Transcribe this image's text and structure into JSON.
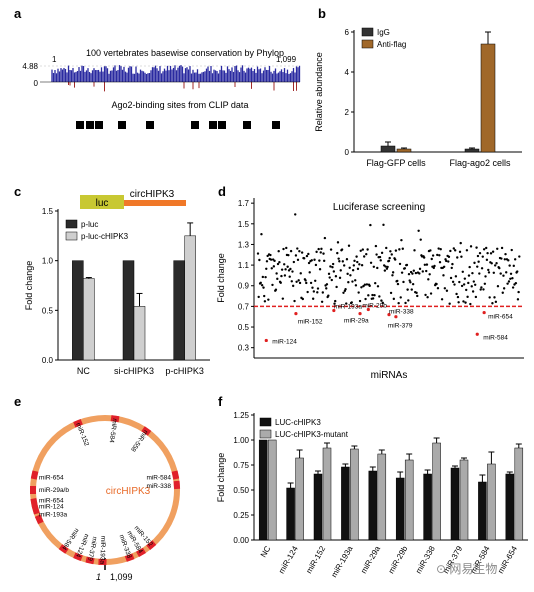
{
  "panels": {
    "a": {
      "letter": "a",
      "track_title": "100 vertebrates basewise conservation by Phylop",
      "y_top": "4.88",
      "y_zero": "0",
      "x_start": "1",
      "x_end": "1,099",
      "clip_title": "Ago2-binding sites from CLIP data"
    },
    "b": {
      "letter": "b"
    },
    "c": {
      "letter": "c",
      "construct_luc": "luc",
      "construct_circ": "circHIPK3"
    },
    "d": {
      "letter": "d"
    },
    "e": {
      "letter": "e",
      "center_label": "circHIPK3",
      "pos_start": "1",
      "pos_end": "1,099",
      "site_labels": [
        "miR-152",
        "miR-584",
        "miR-558",
        "miR-654",
        "miR-29a/b",
        "miR-654",
        "miR-124",
        "miR-193a",
        "miR-584",
        "miR-338",
        "miR-584",
        "miR-124",
        "miR-379",
        "miR-193a",
        "miR-152",
        "miR-584",
        "miR-338"
      ]
    },
    "f": {
      "letter": "f"
    }
  },
  "watermark": "⊙ 网易生物",
  "chart_data": [
    {
      "panel": "b",
      "type": "bar",
      "categories": [
        "Flag-GFP cells",
        "Flag-ago2 cells"
      ],
      "series": [
        {
          "name": "IgG",
          "values": [
            0.3,
            0.15
          ],
          "errors": [
            0.2,
            0.05
          ],
          "color": "#333333"
        },
        {
          "name": "Anti-flag",
          "values": [
            0.15,
            5.4
          ],
          "errors": [
            0.05,
            0.6
          ],
          "color": "#a0682a"
        }
      ],
      "ylabel": "Relative abundance",
      "ylim": [
        0,
        6
      ],
      "yticks": [
        0,
        2,
        4,
        6
      ],
      "legend": "top-left"
    },
    {
      "panel": "c",
      "type": "bar",
      "categories": [
        "NC",
        "si-cHIPK3",
        "p-cHIPK3"
      ],
      "series": [
        {
          "name": "p-luc",
          "values": [
            1.0,
            1.0,
            1.0
          ],
          "errors": [
            0,
            0,
            0
          ],
          "color": "#2b2b2b"
        },
        {
          "name": "p-luc-cHIPK3",
          "values": [
            0.82,
            0.54,
            1.25
          ],
          "errors": [
            0.01,
            0.13,
            0.13
          ],
          "color": "#cfcfcf"
        }
      ],
      "ylabel": "Fold change",
      "ylim": [
        0,
        1.5
      ],
      "yticks": [
        "0.0",
        "0.5",
        "1.0",
        "1.5"
      ],
      "legend": "top-left"
    },
    {
      "panel": "d",
      "type": "scatter",
      "title": "Luciferase screening",
      "xlabel": "miRNAs",
      "ylabel": "Fold change",
      "ylim": [
        0.2,
        1.75
      ],
      "yticks": [
        "0.3",
        "0.5",
        "0.7",
        "0.9",
        "1.1",
        "1.3",
        "1.5",
        "1.7"
      ],
      "threshold": 0.7,
      "n_points": 380,
      "highlighted": [
        {
          "label": "miR-124",
          "x": 12,
          "y": 0.37
        },
        {
          "label": "miR-152",
          "x": 55,
          "y": 0.63
        },
        {
          "label": "miR-193a",
          "x": 110,
          "y": 0.66
        },
        {
          "label": "miR-29b",
          "x": 160,
          "y": 0.67
        },
        {
          "label": "miR-29a",
          "x": 148,
          "y": 0.63
        },
        {
          "label": "miR-338",
          "x": 190,
          "y": 0.62
        },
        {
          "label": "miR-379",
          "x": 200,
          "y": 0.6
        },
        {
          "label": "miR-654",
          "x": 328,
          "y": 0.64
        },
        {
          "label": "miR-584",
          "x": 318,
          "y": 0.43
        }
      ]
    },
    {
      "panel": "f",
      "type": "bar",
      "categories": [
        "NC",
        "miR-124",
        "miR-152",
        "miR-193a",
        "miR-29a",
        "miR-29b",
        "miR-338",
        "miR-379",
        "miR-584",
        "miR-654"
      ],
      "series": [
        {
          "name": "LUC-cHIPK3",
          "values": [
            1.0,
            0.52,
            0.66,
            0.73,
            0.69,
            0.62,
            0.66,
            0.72,
            0.58,
            0.66
          ],
          "errors": [
            0,
            0.05,
            0.03,
            0.03,
            0.04,
            0.06,
            0.04,
            0.02,
            0.07,
            0.02
          ],
          "color": "#111111"
        },
        {
          "name": "LUC-cHIPK3-mutant",
          "values": [
            1.0,
            0.82,
            0.92,
            0.91,
            0.86,
            0.8,
            0.97,
            0.8,
            0.76,
            0.92
          ],
          "errors": [
            0,
            0.08,
            0.05,
            0.03,
            0.04,
            0.06,
            0.05,
            0.02,
            0.12,
            0.04
          ],
          "color": "#aaaaaa"
        }
      ],
      "ylabel": "Fold change",
      "ylim": [
        0,
        1.25
      ],
      "yticks": [
        "0.00",
        "0.25",
        "0.50",
        "0.75",
        "1.00",
        "1.25"
      ],
      "legend": "top-left"
    }
  ]
}
